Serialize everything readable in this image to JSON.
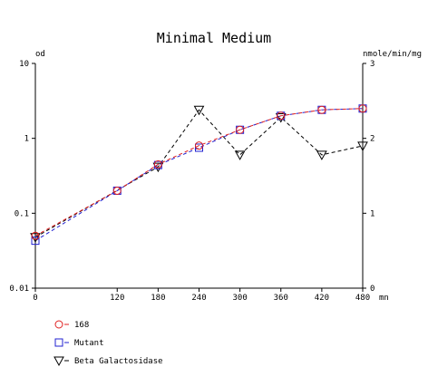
{
  "chart_data": {
    "type": "line",
    "title": "Minimal Medium",
    "x_unit_label": "mn",
    "y_left_label": "od",
    "y_right_label": "nmole/min/mg",
    "x_ticks": [
      "0",
      "120",
      "180",
      "240",
      "300",
      "360",
      "420",
      "480"
    ],
    "y_left_ticks": [
      "10",
      "1",
      "0.1",
      "0.01"
    ],
    "y_right_ticks": [
      "3",
      "2",
      "1",
      "0"
    ],
    "xlim": [
      0,
      480
    ],
    "y_left_scale": "log",
    "y_left_lim": [
      0.01,
      10
    ],
    "y_right_lim": [
      0,
      3
    ],
    "series": [
      {
        "name": "168",
        "axis": "left",
        "color": "#e02020",
        "marker": "circle",
        "x": [
          0,
          120,
          180,
          240,
          300,
          360,
          420,
          480
        ],
        "values": [
          0.05,
          0.2,
          0.45,
          0.8,
          1.3,
          2.0,
          2.4,
          2.5
        ]
      },
      {
        "name": "Mutant",
        "axis": "left",
        "color": "#2020d0",
        "marker": "square",
        "x": [
          0,
          120,
          180,
          240,
          300,
          360,
          420,
          480
        ],
        "values": [
          0.043,
          0.2,
          0.44,
          0.75,
          1.3,
          2.0,
          2.4,
          2.5
        ]
      },
      {
        "name": "Beta Galactosidase",
        "axis": "right",
        "color": "#000000",
        "marker": "triangle-down",
        "x": [
          0,
          180,
          240,
          300,
          360,
          420,
          480
        ],
        "values": [
          0.68,
          1.62,
          2.38,
          1.78,
          2.28,
          1.78,
          1.9
        ]
      }
    ],
    "grid": false,
    "legend_position": "bottom-left"
  }
}
